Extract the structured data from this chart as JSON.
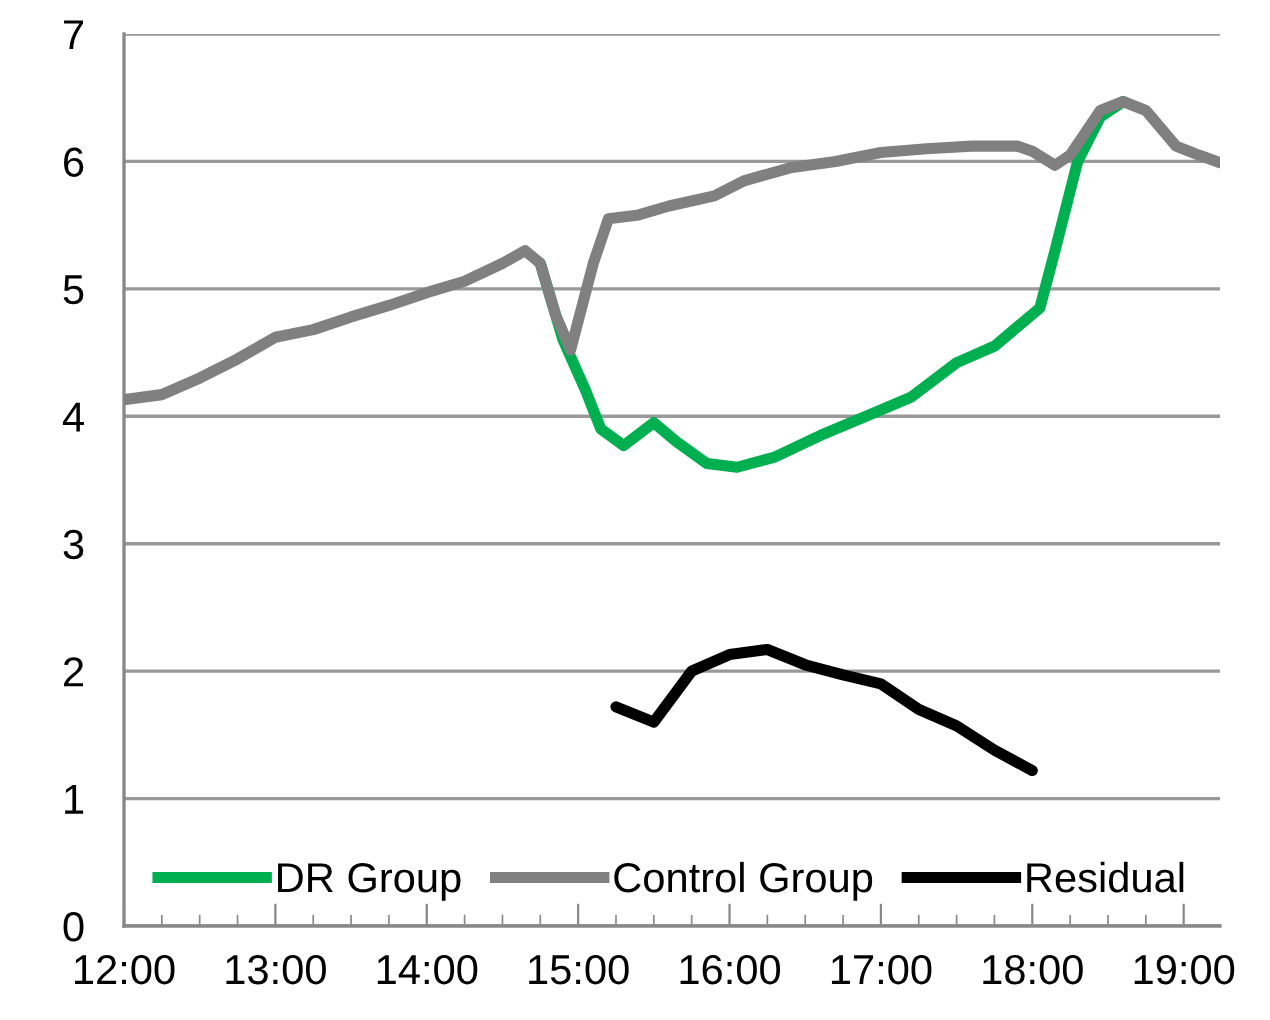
{
  "chart_data": {
    "type": "line",
    "series": [
      {
        "name": "DR Group",
        "color": "#00b050",
        "x": [
          14.75,
          14.9,
          15.05,
          15.15,
          15.3,
          15.5,
          15.65,
          15.85,
          16.05,
          16.3,
          16.6,
          16.9,
          17.2,
          17.5,
          17.75,
          17.95,
          18.05,
          18.15,
          18.3,
          18.45,
          18.6
        ],
        "values": [
          5.2,
          4.6,
          4.2,
          3.9,
          3.77,
          3.95,
          3.8,
          3.63,
          3.6,
          3.68,
          3.85,
          4.0,
          4.15,
          4.42,
          4.55,
          4.75,
          4.85,
          5.3,
          6.0,
          6.35,
          6.47
        ]
      },
      {
        "name": "Control Group",
        "color": "#808080",
        "x": [
          12.0,
          12.25,
          12.5,
          12.75,
          13.0,
          13.25,
          13.5,
          13.75,
          14.0,
          14.25,
          14.5,
          14.65,
          14.75,
          14.85,
          14.95,
          15.1,
          15.2,
          15.4,
          15.6,
          15.9,
          16.1,
          16.4,
          16.7,
          17.0,
          17.3,
          17.6,
          17.9,
          18.0,
          18.15,
          18.25,
          18.45,
          18.6,
          18.75,
          18.95,
          19.1,
          19.24
        ],
        "values": [
          4.13,
          4.17,
          4.3,
          4.45,
          4.62,
          4.68,
          4.78,
          4.87,
          4.97,
          5.06,
          5.2,
          5.3,
          5.2,
          4.8,
          4.52,
          5.2,
          5.55,
          5.58,
          5.65,
          5.73,
          5.85,
          5.95,
          6.0,
          6.07,
          6.1,
          6.12,
          6.12,
          6.08,
          5.97,
          6.05,
          6.4,
          6.47,
          6.4,
          6.12,
          6.05,
          5.99
        ]
      },
      {
        "name": "Residual",
        "color": "#000000",
        "x": [
          15.25,
          15.5,
          15.75,
          16.0,
          16.25,
          16.5,
          16.75,
          17.0,
          17.25,
          17.5,
          17.75,
          18.0
        ],
        "values": [
          1.72,
          1.6,
          2.0,
          2.13,
          2.17,
          2.05,
          1.97,
          1.9,
          1.7,
          1.57,
          1.38,
          1.22
        ]
      }
    ],
    "xlim": [
      12,
      19.24
    ],
    "xticks": [
      {
        "value": 12,
        "label": "12:00"
      },
      {
        "value": 12.25,
        "label": null
      },
      {
        "value": 12.5,
        "label": null
      },
      {
        "value": 12.75,
        "label": null
      },
      {
        "value": 13,
        "label": "13:00"
      },
      {
        "value": 13.25,
        "label": null
      },
      {
        "value": 13.5,
        "label": null
      },
      {
        "value": 13.75,
        "label": null
      },
      {
        "value": 14,
        "label": "14:00"
      },
      {
        "value": 14.25,
        "label": null
      },
      {
        "value": 14.5,
        "label": null
      },
      {
        "value": 14.75,
        "label": null
      },
      {
        "value": 15,
        "label": "15:00"
      },
      {
        "value": 15.25,
        "label": null
      },
      {
        "value": 15.5,
        "label": null
      },
      {
        "value": 15.75,
        "label": null
      },
      {
        "value": 16,
        "label": "16:00"
      },
      {
        "value": 16.25,
        "label": null
      },
      {
        "value": 16.5,
        "label": null
      },
      {
        "value": 16.75,
        "label": null
      },
      {
        "value": 17,
        "label": "17:00"
      },
      {
        "value": 17.25,
        "label": null
      },
      {
        "value": 17.5,
        "label": null
      },
      {
        "value": 17.75,
        "label": null
      },
      {
        "value": 18,
        "label": "18:00"
      },
      {
        "value": 18.25,
        "label": null
      },
      {
        "value": 18.5,
        "label": null
      },
      {
        "value": 18.75,
        "label": null
      },
      {
        "value": 19,
        "label": "19:00"
      }
    ],
    "ylim": [
      0,
      7
    ],
    "yticks": [
      0,
      1,
      2,
      3,
      4,
      5,
      6,
      7
    ],
    "grid": "y",
    "legend": "bottom",
    "marker": "none",
    "line_style": "solid"
  }
}
